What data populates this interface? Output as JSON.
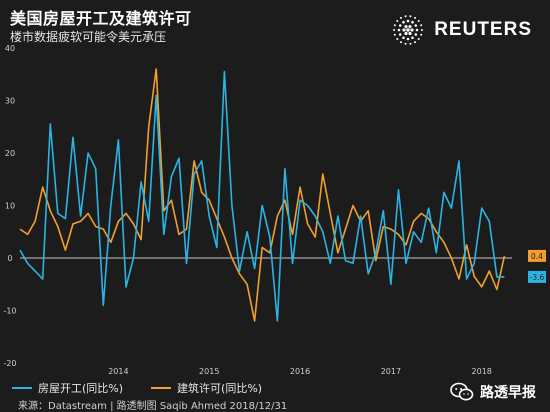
{
  "header": {
    "title": "美国房屋开工及建筑许可",
    "subtitle": "楼市数据疲软可能令美元承压"
  },
  "brand": {
    "name": "REUTERS",
    "icon": "reuters-dot-logo-icon"
  },
  "legend": {
    "starts_label": "房屋开工(同比%)",
    "permits_label": "建筑许可(同比%)"
  },
  "footer": {
    "source": "来源：Datastream | 路透制图 Saqib Ahmed 2018/12/31",
    "watermark": "路透早报",
    "watermark_icon": "wechat-icon"
  },
  "colors": {
    "starts": "#2ab4e4",
    "permits": "#f0a030",
    "background": "#1c1c1c",
    "grid": "#3a3a3a",
    "zero_line": "#ffffff"
  },
  "chart_data": {
    "type": "line",
    "title": "美国房屋开工及建筑许可",
    "subtitle": "楼市数据疲软可能令美元承压",
    "x_ticks": [
      "2014",
      "2015",
      "2016",
      "2017",
      "2018"
    ],
    "x_range": [
      "2013-06",
      "2018-11"
    ],
    "ylim": [
      -20,
      40
    ],
    "y_ticks": [
      -20,
      -10,
      0,
      10,
      20,
      30,
      40
    ],
    "grid": false,
    "legend_position": "bottom-left",
    "series": [
      {
        "name": "房屋开工(同比%)",
        "color": "#2ab4e4",
        "end_label": "-3.6",
        "points": [
          [
            "2013-06",
            1.5
          ],
          [
            "2013-07",
            -1
          ],
          [
            "2013-08",
            -2.5
          ],
          [
            "2013-09",
            -4
          ],
          [
            "2013-10",
            25.5
          ],
          [
            "2013-11",
            8.5
          ],
          [
            "2013-12",
            7.5
          ],
          [
            "2014-01",
            23
          ],
          [
            "2014-02",
            8
          ],
          [
            "2014-03",
            20
          ],
          [
            "2014-04",
            17
          ],
          [
            "2014-05",
            -9
          ],
          [
            "2014-06",
            10
          ],
          [
            "2014-07",
            22.5
          ],
          [
            "2014-08",
            -5.5
          ],
          [
            "2014-09",
            0
          ],
          [
            "2014-10",
            14.5
          ],
          [
            "2014-11",
            7
          ],
          [
            "2014-12",
            31
          ],
          [
            "2015-01",
            4.5
          ],
          [
            "2015-02",
            15.5
          ],
          [
            "2015-03",
            19
          ],
          [
            "2015-04",
            -1
          ],
          [
            "2015-05",
            16
          ],
          [
            "2015-06",
            18.5
          ],
          [
            "2015-07",
            8
          ],
          [
            "2015-08",
            2
          ],
          [
            "2015-09",
            35.5
          ],
          [
            "2015-10",
            10
          ],
          [
            "2015-11",
            -2.5
          ],
          [
            "2015-12",
            5
          ],
          [
            "2016-01",
            -2
          ],
          [
            "2016-02",
            10
          ],
          [
            "2016-03",
            4
          ],
          [
            "2016-04",
            -12
          ],
          [
            "2016-05",
            17
          ],
          [
            "2016-06",
            -1
          ],
          [
            "2016-07",
            11
          ],
          [
            "2016-08",
            10
          ],
          [
            "2016-09",
            8
          ],
          [
            "2016-10",
            5
          ],
          [
            "2016-11",
            -1
          ],
          [
            "2016-12",
            8
          ],
          [
            "2017-01",
            -0.5
          ],
          [
            "2017-02",
            -1
          ],
          [
            "2017-03",
            8
          ],
          [
            "2017-04",
            -3
          ],
          [
            "2017-05",
            1
          ],
          [
            "2017-06",
            9
          ],
          [
            "2017-07",
            -5
          ],
          [
            "2017-08",
            13
          ],
          [
            "2017-09",
            -1
          ],
          [
            "2017-10",
            5
          ],
          [
            "2017-11",
            3
          ],
          [
            "2017-12",
            9.5
          ],
          [
            "2018-01",
            1
          ],
          [
            "2018-02",
            12.5
          ],
          [
            "2018-03",
            9.5
          ],
          [
            "2018-04",
            18.5
          ],
          [
            "2018-05",
            -4
          ],
          [
            "2018-06",
            -1
          ],
          [
            "2018-07",
            9.5
          ],
          [
            "2018-08",
            7
          ],
          [
            "2018-09",
            -3.6
          ],
          [
            "2018-10",
            -3.6
          ]
        ]
      },
      {
        "name": "建筑许可(同比%)",
        "color": "#f0a030",
        "end_label": "0.4",
        "points": [
          [
            "2013-06",
            5.5
          ],
          [
            "2013-07",
            4.5
          ],
          [
            "2013-08",
            7
          ],
          [
            "2013-09",
            13.5
          ],
          [
            "2013-10",
            9
          ],
          [
            "2013-11",
            6
          ],
          [
            "2013-12",
            1.5
          ],
          [
            "2014-01",
            6.5
          ],
          [
            "2014-02",
            7
          ],
          [
            "2014-03",
            8.5
          ],
          [
            "2014-04",
            6
          ],
          [
            "2014-05",
            5.5
          ],
          [
            "2014-06",
            3
          ],
          [
            "2014-07",
            7
          ],
          [
            "2014-08",
            8.5
          ],
          [
            "2014-09",
            6.5
          ],
          [
            "2014-10",
            3.5
          ],
          [
            "2014-11",
            25
          ],
          [
            "2014-12",
            36
          ],
          [
            "2015-01",
            9
          ],
          [
            "2015-02",
            11
          ],
          [
            "2015-03",
            4.5
          ],
          [
            "2015-04",
            5.5
          ],
          [
            "2015-05",
            18.5
          ],
          [
            "2015-06",
            12.5
          ],
          [
            "2015-07",
            11
          ],
          [
            "2015-08",
            7.5
          ],
          [
            "2015-09",
            4
          ],
          [
            "2015-10",
            0
          ],
          [
            "2015-11",
            -3
          ],
          [
            "2015-12",
            -5
          ],
          [
            "2016-01",
            -12
          ],
          [
            "2016-02",
            2
          ],
          [
            "2016-03",
            1
          ],
          [
            "2016-04",
            8
          ],
          [
            "2016-05",
            11
          ],
          [
            "2016-06",
            4.5
          ],
          [
            "2016-07",
            13.5
          ],
          [
            "2016-08",
            6.5
          ],
          [
            "2016-09",
            4
          ],
          [
            "2016-10",
            16
          ],
          [
            "2016-11",
            8.5
          ],
          [
            "2016-12",
            1
          ],
          [
            "2017-01",
            5.5
          ],
          [
            "2017-02",
            10
          ],
          [
            "2017-03",
            7
          ],
          [
            "2017-04",
            9
          ],
          [
            "2017-05",
            -0.5
          ],
          [
            "2017-06",
            6
          ],
          [
            "2017-07",
            5.5
          ],
          [
            "2017-08",
            4.5
          ],
          [
            "2017-09",
            2.5
          ],
          [
            "2017-10",
            7
          ],
          [
            "2017-11",
            8.5
          ],
          [
            "2017-12",
            7.5
          ],
          [
            "2018-01",
            5
          ],
          [
            "2018-02",
            3
          ],
          [
            "2018-03",
            0
          ],
          [
            "2018-04",
            -4
          ],
          [
            "2018-05",
            2.5
          ],
          [
            "2018-06",
            -3.5
          ],
          [
            "2018-07",
            -5.5
          ],
          [
            "2018-08",
            -2.5
          ],
          [
            "2018-09",
            -6
          ],
          [
            "2018-10",
            0.4
          ]
        ]
      }
    ]
  }
}
